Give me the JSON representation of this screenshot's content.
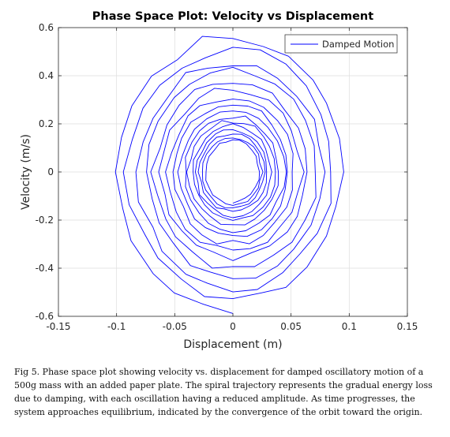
{
  "chart_data": {
    "type": "line",
    "title": "Phase Space Plot: Velocity vs Displacement",
    "xlabel": "Displacement (m)",
    "ylabel": "Velocity (m/s)",
    "xlim": [
      -0.15,
      0.15
    ],
    "ylim": [
      -0.6,
      0.6
    ],
    "xticks": [
      -0.15,
      -0.1,
      -0.05,
      0,
      0.05,
      0.1,
      0.15
    ],
    "xtick_labels": [
      "-0.15",
      "-0.1",
      "-0.05",
      "0",
      "0.05",
      "0.1",
      "0.15"
    ],
    "yticks": [
      -0.6,
      -0.4,
      -0.2,
      0,
      0.2,
      0.4,
      0.6
    ],
    "ytick_labels": [
      "-0.6",
      "-0.4",
      "-0.2",
      "0",
      "0.2",
      "0.4",
      "0.6"
    ],
    "grid": true,
    "legend_position": "top-right",
    "series": [
      {
        "name": "Damped Motion",
        "color": "#0000ff",
        "model": {
          "start_amplitude_x": 0.102,
          "end_amplitude_x": 0.022,
          "start_amplitude_y": 0.585,
          "end_amplitude_y": 0.125,
          "cycles": 16
        }
      }
    ]
  },
  "caption": "Fig 5. Phase space plot showing velocity vs. displacement for damped oscillatory motion of a 500g mass with an added paper plate. The spiral trajectory represents the gradual energy loss due to damping, with each oscillation having a reduced amplitude. As time progresses, the system approaches equilibrium, indicated by the convergence of the orbit toward the origin."
}
